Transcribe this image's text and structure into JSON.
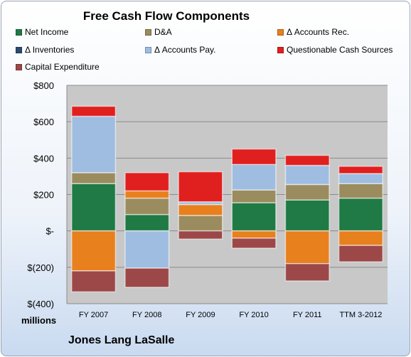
{
  "chart_data": {
    "type": "bar",
    "stacked": true,
    "title": "Free Cash Flow Components",
    "units": "millions",
    "company": "Jones Lang LaSalle",
    "categories": [
      "FY 2007",
      "FY 2008",
      "FY 2009",
      "FY 2010",
      "FY 2011",
      "TTM 3-2012"
    ],
    "ylim": [
      -400,
      800
    ],
    "yticks": [
      {
        "value": 800,
        "label": "$800"
      },
      {
        "value": 600,
        "label": "$600"
      },
      {
        "value": 400,
        "label": "$400"
      },
      {
        "value": 200,
        "label": "$200"
      },
      {
        "value": 0,
        "label": "$-"
      },
      {
        "value": -200,
        "label": "$(200)"
      },
      {
        "value": -400,
        "label": "$(400)"
      }
    ],
    "grid": true,
    "legend_position": "top",
    "series": [
      {
        "name": "Net Income",
        "color": "#1f7a45",
        "values": [
          260,
          90,
          0,
          155,
          170,
          180
        ]
      },
      {
        "name": "D&A",
        "color": "#9a8c5e",
        "values": [
          60,
          90,
          85,
          70,
          85,
          80
        ]
      },
      {
        "name": "Δ Accounts Rec.",
        "color": "#e8801e",
        "values": [
          -220,
          40,
          60,
          -40,
          -180,
          -80
        ]
      },
      {
        "name": "Δ Inventories",
        "color": "#2b4a6e",
        "values": [
          0,
          0,
          0,
          0,
          0,
          0
        ]
      },
      {
        "name": "Δ Accounts Pay.",
        "color": "#9fbde0",
        "values": [
          310,
          -205,
          15,
          140,
          105,
          55
        ]
      },
      {
        "name": "Questionable Cash Sources",
        "color": "#e01f1f",
        "values": [
          55,
          100,
          165,
          85,
          55,
          40
        ]
      },
      {
        "name": "Capital Expenditure",
        "color": "#9c4848",
        "values": [
          -115,
          -105,
          -45,
          -55,
          -95,
          -90
        ]
      }
    ]
  }
}
